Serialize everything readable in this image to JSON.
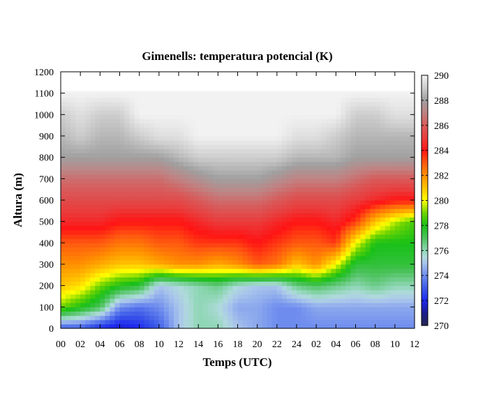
{
  "chart_data": {
    "type": "heatmap",
    "title": "Gimenells: temperatura potencial (K)",
    "xlabel": "Temps (UTC)",
    "ylabel": "Altura (m)",
    "x_tick_labels": [
      "00",
      "02",
      "04",
      "06",
      "08",
      "10",
      "12",
      "14",
      "16",
      "18",
      "20",
      "22",
      "24",
      "02",
      "04",
      "06",
      "08",
      "10",
      "12"
    ],
    "x_hours": [
      0,
      2,
      4,
      6,
      8,
      10,
      12,
      14,
      16,
      18,
      20,
      22,
      24,
      26,
      28,
      30,
      32,
      34,
      36
    ],
    "y_ticks": [
      0,
      100,
      200,
      300,
      400,
      500,
      600,
      700,
      800,
      900,
      1000,
      1100,
      1200
    ],
    "ylim": [
      0,
      1200
    ],
    "heights": [
      0,
      100,
      200,
      300,
      400,
      500,
      600,
      700,
      800,
      900,
      1000,
      1100
    ],
    "colorbar": {
      "range": [
        270,
        290
      ],
      "tick_labels": [
        "270",
        "272",
        "274",
        "276",
        "278",
        "280",
        "282",
        "284",
        "286",
        "288",
        "290"
      ],
      "colors": {
        "270": "#262650",
        "271": "#1c1c90",
        "272": "#1e28f0",
        "273": "#3c5ae8",
        "274": "#6e8cee",
        "275": "#a8c4ec",
        "275.5": "#b0dadc",
        "276": "#8ed6b4",
        "277": "#4cc25c",
        "278": "#18c018",
        "279": "#70d400",
        "280": "#ffff00",
        "281": "#ffc400",
        "282": "#ff9000",
        "283": "#ff5a10",
        "284": "#ff1414",
        "285": "#ea3c3c",
        "286": "#d85a5a",
        "287": "#c08282",
        "288": "#a0a0a0",
        "289": "#cdcdcd",
        "290": "#f2f2f2"
      }
    },
    "values_by_time": [
      [
        273,
        279,
        281,
        282,
        283,
        284.5,
        285.5,
        286.5,
        288,
        288.5,
        289,
        290
      ],
      [
        273,
        278,
        280.5,
        282,
        283,
        284.5,
        285.5,
        286.5,
        288,
        289,
        289.5,
        290
      ],
      [
        272,
        277,
        279,
        281.5,
        283,
        284.5,
        285.5,
        286.5,
        288,
        288.5,
        289,
        290
      ],
      [
        271.5,
        274,
        278,
        281,
        282.5,
        284,
        285.5,
        286.5,
        288,
        288.5,
        289,
        290
      ],
      [
        272,
        273.5,
        277.5,
        281,
        282.5,
        284,
        285.5,
        286.5,
        288,
        289,
        290,
        290
      ],
      [
        273,
        274,
        275,
        281.5,
        283,
        284,
        285.5,
        286.5,
        288,
        289.5,
        290,
        290
      ],
      [
        275,
        275,
        275.5,
        282,
        283,
        284,
        285.5,
        287,
        288.5,
        289.5,
        290,
        290
      ],
      [
        276,
        276,
        276,
        282,
        283.5,
        284.5,
        286,
        287.5,
        289,
        290,
        290,
        290
      ],
      [
        276,
        275.5,
        276.5,
        281.5,
        283.5,
        285,
        286.5,
        288,
        289,
        290,
        290,
        290
      ],
      [
        275,
        274.5,
        275.5,
        282,
        283.5,
        285,
        286.5,
        288,
        289,
        290,
        290,
        290
      ],
      [
        274.5,
        274.5,
        275,
        283,
        284,
        285,
        286.5,
        288,
        289,
        290,
        290,
        290
      ],
      [
        274,
        274,
        275,
        282.5,
        283.5,
        284.5,
        286,
        287.5,
        289,
        290,
        290,
        290
      ],
      [
        274,
        274,
        276.5,
        281,
        283,
        284,
        285.5,
        287,
        288.5,
        289.5,
        290,
        290
      ],
      [
        274,
        274.5,
        277,
        282,
        283,
        284,
        285.5,
        287,
        288.5,
        289.5,
        290,
        290
      ],
      [
        274,
        274.5,
        276.5,
        280,
        283.5,
        284.5,
        285.5,
        287,
        288.5,
        289,
        290,
        290
      ],
      [
        274,
        274.5,
        276,
        277.5,
        280,
        283.5,
        285,
        286.5,
        288,
        288.5,
        289,
        290
      ],
      [
        274,
        274.5,
        276.5,
        277.5,
        278,
        281,
        284.5,
        286,
        288,
        288.5,
        289,
        290
      ],
      [
        274,
        274.5,
        276,
        277.5,
        278,
        279.5,
        284,
        286,
        288,
        288.5,
        289.5,
        290
      ],
      [
        274,
        274.5,
        276,
        277.5,
        278,
        278.5,
        284,
        286,
        288,
        288.5,
        289.5,
        290
      ]
    ],
    "data_top_m": 1110,
    "grid": false,
    "legend": "colorbar-right"
  }
}
